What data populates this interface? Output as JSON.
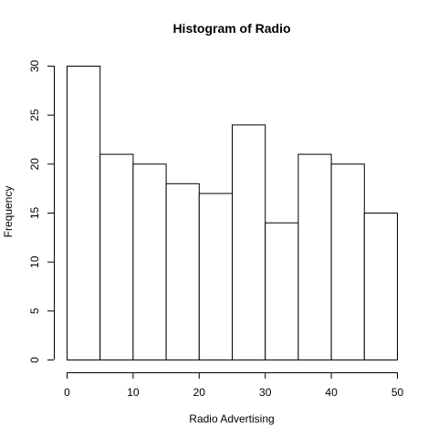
{
  "chart_data": {
    "type": "bar",
    "title": "Histogram of Radio",
    "xlabel": "Radio Advertising",
    "ylabel": "Frequency",
    "bins": [
      {
        "start": 0,
        "end": 5,
        "count": 30
      },
      {
        "start": 5,
        "end": 10,
        "count": 21
      },
      {
        "start": 10,
        "end": 15,
        "count": 20
      },
      {
        "start": 15,
        "end": 20,
        "count": 18
      },
      {
        "start": 20,
        "end": 25,
        "count": 17
      },
      {
        "start": 25,
        "end": 30,
        "count": 24
      },
      {
        "start": 30,
        "end": 35,
        "count": 14
      },
      {
        "start": 35,
        "end": 40,
        "count": 21
      },
      {
        "start": 40,
        "end": 45,
        "count": 20
      },
      {
        "start": 45,
        "end": 50,
        "count": 15
      }
    ],
    "xlim": [
      0,
      50
    ],
    "ylim": [
      0,
      30
    ],
    "xticks": [
      0,
      10,
      20,
      30,
      40,
      50
    ],
    "yticks": [
      0,
      5,
      10,
      15,
      20,
      25,
      30
    ],
    "grid": false,
    "bar_fill": "#ffffff",
    "bar_stroke": "#000000"
  }
}
